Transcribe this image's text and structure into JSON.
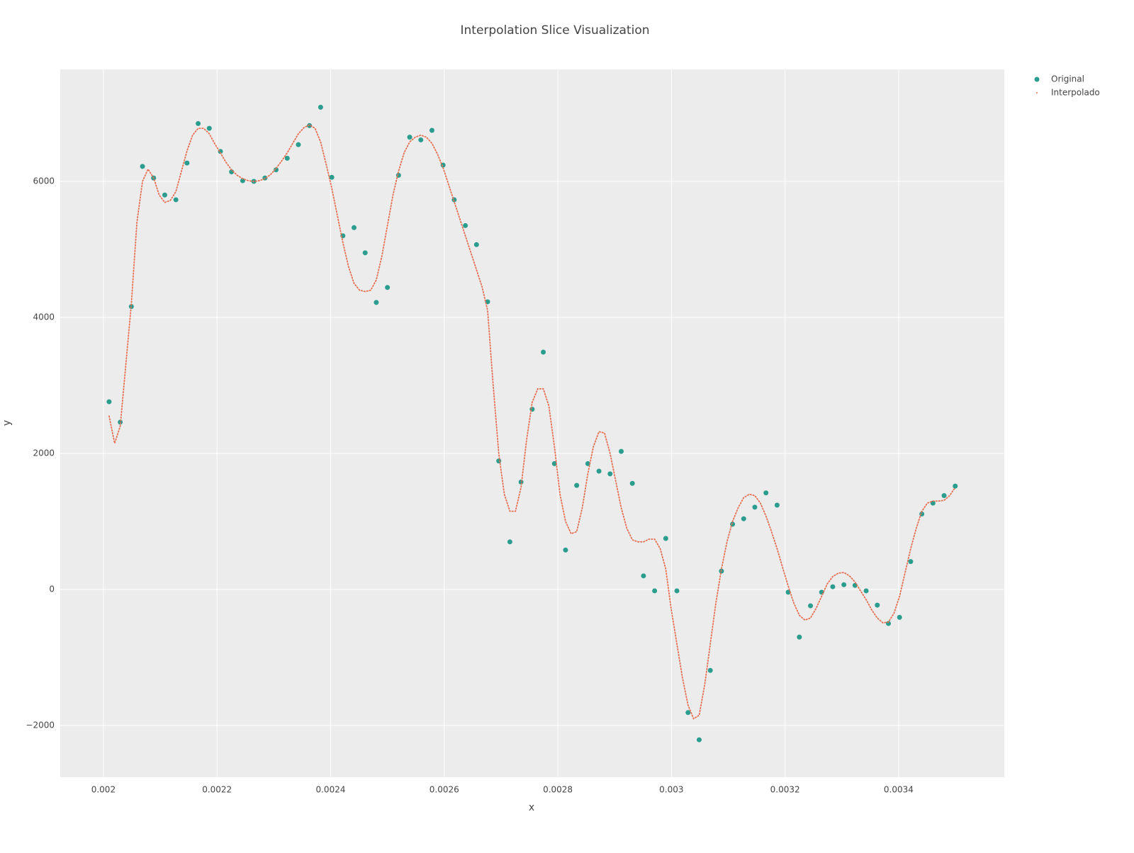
{
  "chart_data": {
    "type": "scatter",
    "title": "Interpolation Slice Visualization",
    "x_label": "x",
    "y_label": "y",
    "xlim": [
      0.001924,
      0.003586
    ],
    "ylim": [
      -2760,
      7646
    ],
    "xticks": [
      0.002,
      0.0022,
      0.0024,
      0.0026,
      0.0028,
      0.003,
      0.0032,
      0.0034
    ],
    "yticks": [
      {
        "value": -2000,
        "label": "−2000"
      },
      0,
      2000,
      4000,
      6000
    ],
    "grid": true,
    "legend": "top-right",
    "background": "#ececec",
    "series": [
      {
        "name": "Original",
        "color": "#2a9d8f",
        "mode": "markers",
        "x": [
          0.00201,
          0.0020296,
          0.0020492,
          0.0020688,
          0.0020884,
          0.002108,
          0.0021276,
          0.0021472,
          0.0021668,
          0.0021864,
          0.002206,
          0.0022256,
          0.0022452,
          0.0022648,
          0.0022844,
          0.002304,
          0.0023236,
          0.0023432,
          0.0023628,
          0.0023824,
          0.002402,
          0.0024216,
          0.0024412,
          0.0024608,
          0.0024804,
          0.0025,
          0.0025196,
          0.0025392,
          0.0025588,
          0.0025784,
          0.002598,
          0.0026176,
          0.0026372,
          0.0026568,
          0.0026764,
          0.002696,
          0.0027156,
          0.0027352,
          0.0027548,
          0.0027744,
          0.002794,
          0.0028136,
          0.0028332,
          0.0028528,
          0.0028724,
          0.002892,
          0.0029116,
          0.0029312,
          0.0029508,
          0.0029704,
          0.00299,
          0.0030096,
          0.0030292,
          0.0030488,
          0.0030684,
          0.003088,
          0.0031076,
          0.0031272,
          0.0031468,
          0.0031664,
          0.003186,
          0.0032056,
          0.0032252,
          0.0032448,
          0.0032644,
          0.003284,
          0.0033036,
          0.0033232,
          0.0033428,
          0.0033624,
          0.003382,
          0.0034016,
          0.0034212,
          0.0034408,
          0.0034604,
          0.00348,
          0.0034996
        ],
        "values": [
          2760,
          2460,
          4160,
          6220,
          6050,
          5800,
          5730,
          6270,
          6850,
          6780,
          6440,
          6140,
          6010,
          6000,
          6050,
          6170,
          6340,
          6540,
          6820,
          7090,
          6060,
          5200,
          5320,
          4950,
          4220,
          4440,
          6090,
          6650,
          6610,
          6750,
          6240,
          5730,
          5350,
          5070,
          4230,
          1890,
          700,
          1580,
          2650,
          3490,
          1850,
          580,
          1530,
          1850,
          1740,
          1700,
          2030,
          1560,
          200,
          -20,
          750,
          -20,
          -1810,
          -2210,
          -1190,
          270,
          960,
          1040,
          1210,
          1420,
          1240,
          -40,
          -700,
          -240,
          -40,
          40,
          70,
          60,
          -20,
          -230,
          -500,
          -410,
          410,
          1110,
          1270,
          1380,
          1520
        ]
      },
      {
        "name": "Interpolado",
        "color": "#e76f51",
        "mode": "dots",
        "x": [
          0.00201,
          0.0020198,
          0.0020296,
          0.0020394,
          0.0020492,
          0.002059,
          0.0020688,
          0.0020786,
          0.0020884,
          0.0020982,
          0.002108,
          0.0021178,
          0.0021276,
          0.0021374,
          0.0021472,
          0.002157,
          0.0021668,
          0.0021766,
          0.0021864,
          0.0021962,
          0.002206,
          0.0022158,
          0.0022256,
          0.0022354,
          0.0022452,
          0.002255,
          0.0022648,
          0.0022746,
          0.0022844,
          0.0022942,
          0.002304,
          0.0023138,
          0.0023236,
          0.0023334,
          0.0023432,
          0.002353,
          0.0023628,
          0.0023726,
          0.0023824,
          0.0023922,
          0.002402,
          0.0024118,
          0.0024216,
          0.0024314,
          0.0024412,
          0.002451,
          0.0024608,
          0.0024706,
          0.0024804,
          0.0024902,
          0.0025,
          0.0025098,
          0.0025196,
          0.0025294,
          0.0025392,
          0.002549,
          0.0025588,
          0.0025686,
          0.0025784,
          0.0025882,
          0.002598,
          0.0026078,
          0.0026176,
          0.0026274,
          0.0026372,
          0.002647,
          0.0026568,
          0.0026666,
          0.0026764,
          0.0026862,
          0.002696,
          0.0027058,
          0.0027156,
          0.0027254,
          0.0027352,
          0.002745,
          0.0027548,
          0.0027646,
          0.0027744,
          0.0027842,
          0.002794,
          0.0028038,
          0.0028136,
          0.0028234,
          0.0028332,
          0.002843,
          0.0028528,
          0.0028626,
          0.0028724,
          0.0028822,
          0.002892,
          0.0029018,
          0.0029116,
          0.0029214,
          0.0029312,
          0.002941,
          0.0029508,
          0.0029606,
          0.0029704,
          0.0029802,
          0.00299,
          0.0029998,
          0.0030096,
          0.0030194,
          0.0030292,
          0.003039,
          0.0030488,
          0.0030586,
          0.0030684,
          0.0030782,
          0.003088,
          0.0030978,
          0.0031076,
          0.0031174,
          0.0031272,
          0.003137,
          0.0031468,
          0.0031566,
          0.0031664,
          0.0031762,
          0.003186,
          0.0031958,
          0.0032056,
          0.0032154,
          0.0032252,
          0.003235,
          0.0032448,
          0.0032546,
          0.0032644,
          0.0032742,
          0.003284,
          0.0032938,
          0.0033036,
          0.0033134,
          0.0033232,
          0.003333,
          0.0033428,
          0.0033526,
          0.0033624,
          0.0033722,
          0.003382,
          0.0033918,
          0.0034016,
          0.0034114,
          0.0034212,
          0.003431,
          0.0034408,
          0.0034506,
          0.0034604,
          0.0034702,
          0.00348,
          0.0034898,
          0.0034996
        ],
        "values": [
          2550,
          2150,
          2400,
          3300,
          4200,
          5400,
          6000,
          6180,
          6050,
          5800,
          5690,
          5720,
          5850,
          6150,
          6450,
          6680,
          6780,
          6780,
          6700,
          6550,
          6420,
          6280,
          6170,
          6090,
          6040,
          6010,
          6000,
          6010,
          6040,
          6100,
          6190,
          6300,
          6420,
          6560,
          6700,
          6790,
          6830,
          6780,
          6580,
          6250,
          5900,
          5500,
          5100,
          4750,
          4500,
          4400,
          4380,
          4400,
          4550,
          4900,
          5350,
          5800,
          6150,
          6420,
          6580,
          6650,
          6680,
          6650,
          6560,
          6400,
          6200,
          5950,
          5700,
          5450,
          5200,
          4950,
          4700,
          4450,
          4100,
          3000,
          2000,
          1400,
          1150,
          1150,
          1500,
          2200,
          2750,
          2950,
          2950,
          2700,
          2100,
          1400,
          1000,
          820,
          850,
          1200,
          1700,
          2100,
          2320,
          2300,
          2000,
          1600,
          1200,
          900,
          730,
          700,
          700,
          740,
          740,
          600,
          300,
          -300,
          -800,
          -1300,
          -1700,
          -1900,
          -1850,
          -1400,
          -800,
          -200,
          300,
          700,
          1000,
          1200,
          1350,
          1400,
          1380,
          1270,
          1080,
          850,
          600,
          320,
          50,
          -200,
          -380,
          -450,
          -420,
          -280,
          -100,
          80,
          190,
          240,
          250,
          200,
          110,
          -20,
          -150,
          -300,
          -420,
          -490,
          -480,
          -350,
          -100,
          250,
          600,
          900,
          1150,
          1270,
          1300,
          1300,
          1310,
          1380,
          1500
        ]
      }
    ]
  }
}
